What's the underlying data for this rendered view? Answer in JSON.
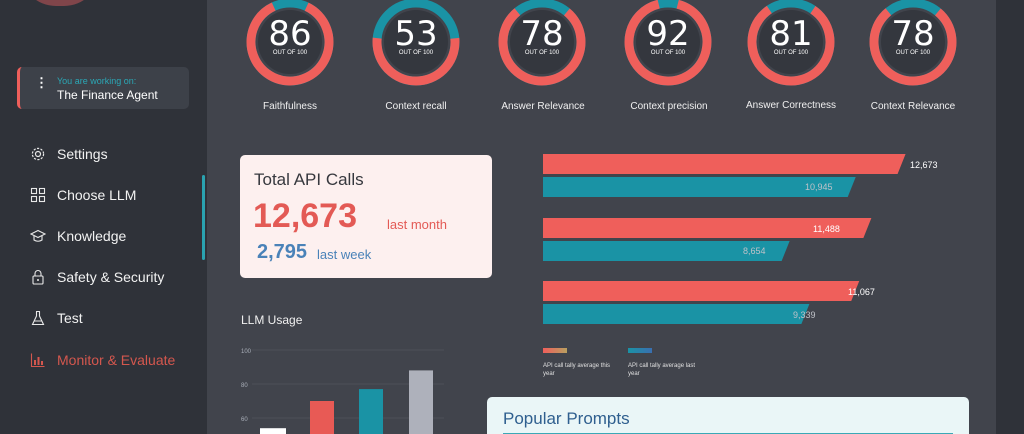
{
  "sidebar": {
    "agent": {
      "sub": "You are working on:",
      "name": "The Finance Agent"
    },
    "items": [
      {
        "label": "Settings",
        "icon": "gear-icon"
      },
      {
        "label": "Choose LLM",
        "icon": "grid-icon"
      },
      {
        "label": "Knowledge",
        "icon": "graduation-cap-icon"
      },
      {
        "label": "Safety & Security",
        "icon": "lock-icon"
      },
      {
        "label": "Test",
        "icon": "flask-icon"
      },
      {
        "label": "Monitor & Evaluate",
        "icon": "bar-chart-icon",
        "active": true
      }
    ]
  },
  "gauges": [
    {
      "value": "86",
      "out_of": "OUT OF 100",
      "label": "Faithfulness"
    },
    {
      "value": "53",
      "out_of": "OUT OF 100",
      "label": "Context recall"
    },
    {
      "value": "78",
      "out_of": "OUT OF 100",
      "label": "Answer Relevance"
    },
    {
      "value": "92",
      "out_of": "OUT OF 100",
      "label": "Context precision"
    },
    {
      "value": "81",
      "out_of": "OUT OF 100",
      "label": "Answer Correctness"
    },
    {
      "value": "78",
      "out_of": "OUT OF 100",
      "label": "Context Relevance"
    }
  ],
  "api_calls": {
    "title": "Total API Calls",
    "month_value": "12,673",
    "month_label": "last month",
    "week_value": "2,795",
    "week_label": "last week"
  },
  "api_bars": {
    "rows": [
      {
        "this_year": 12673,
        "this_year_label": "12,673",
        "last_year": 10945,
        "last_year_label": "10,945"
      },
      {
        "this_year": 11488,
        "this_year_label": "11,488",
        "last_year": 8654,
        "last_year_label": "8,654"
      },
      {
        "this_year": 11067,
        "this_year_label": "11,067",
        "last_year": 9339,
        "last_year_label": "9,339"
      }
    ],
    "legend": [
      {
        "text": "API call tally average this year",
        "color": "#ef5f5b"
      },
      {
        "text": "API call tally average last year",
        "color": "#1a93a5"
      }
    ],
    "colors": {
      "this_year": "#ef5f5b",
      "last_year": "#1a93a5"
    }
  },
  "llm_usage": {
    "title": "LLM Usage",
    "ticks": [
      "100",
      "80",
      "60"
    ],
    "values": [
      54,
      70,
      77,
      88
    ],
    "colors": [
      "#ffffff",
      "#e85a55",
      "#1a93a5",
      "#aeb1bb"
    ]
  },
  "popular_prompts": {
    "title": "Popular Prompts"
  },
  "colors": {
    "accent_red": "#ef5f5b",
    "accent_teal": "#1a93a5"
  }
}
